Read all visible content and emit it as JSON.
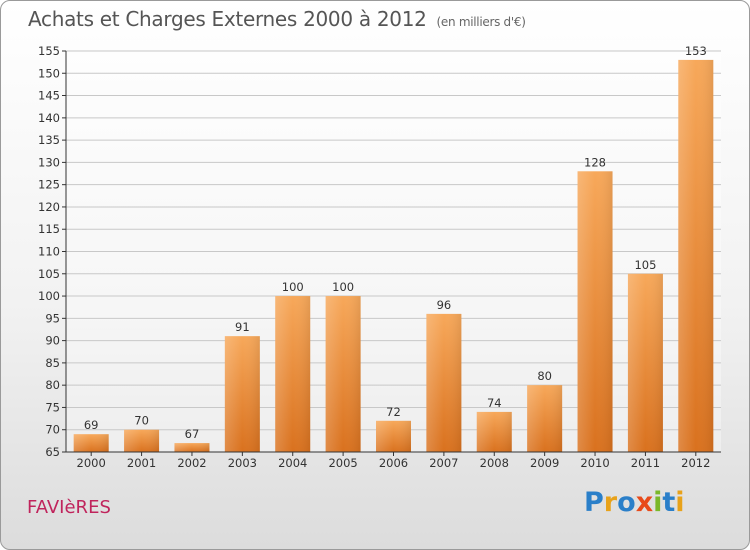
{
  "title": "Achats et Charges Externes 2000 à 2012",
  "subtitle": "(en milliers d'€)",
  "town": "FAVIèRES",
  "logo": {
    "letters": [
      {
        "ch": "P",
        "color": "#2a7fc9"
      },
      {
        "ch": "r",
        "color": "#e8a21a"
      },
      {
        "ch": "o",
        "color": "#2a7fc9"
      },
      {
        "ch": "x",
        "color": "#e84a1a"
      },
      {
        "ch": "i",
        "color": "#7ab829"
      },
      {
        "ch": "t",
        "color": "#2a7fc9"
      },
      {
        "ch": "i",
        "color": "#e8a21a"
      }
    ]
  },
  "colors": {
    "bar_top": "#f7a85a",
    "bar_bottom": "#d9711e",
    "grid": "#c8c8c8",
    "axis": "#333333",
    "text": "#333333"
  },
  "chart_data": {
    "type": "bar",
    "title": "Achats et Charges Externes 2000 à 2012",
    "subtitle": "(en milliers d'€)",
    "xlabel": "",
    "ylabel": "",
    "categories": [
      "2000",
      "2001",
      "2002",
      "2003",
      "2004",
      "2005",
      "2006",
      "2007",
      "2008",
      "2009",
      "2010",
      "2011",
      "2012"
    ],
    "values": [
      69,
      70,
      67,
      91,
      100,
      100,
      72,
      96,
      74,
      80,
      128,
      105,
      153
    ],
    "ylim": [
      65,
      155
    ],
    "yticks": [
      65,
      70,
      75,
      80,
      85,
      90,
      95,
      100,
      105,
      110,
      115,
      120,
      125,
      130,
      135,
      140,
      145,
      150,
      155
    ],
    "grid": true,
    "data_labels": true
  }
}
